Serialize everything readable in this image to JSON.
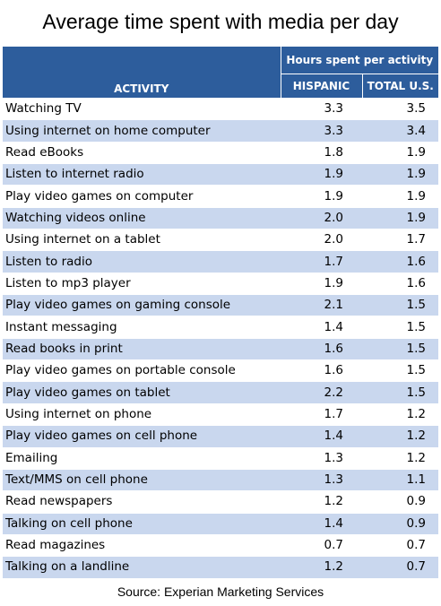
{
  "chart_data": {
    "type": "table",
    "title": "Average time spent with media per day",
    "header": {
      "activity": "ACTIVITY",
      "group": "Hours spent per activity",
      "hispanic": "HISPANIC",
      "total": "TOTAL U.S."
    },
    "rows": [
      {
        "activity": "Watching TV",
        "hispanic": "3.3",
        "total": "3.5"
      },
      {
        "activity": "Using internet on home computer",
        "hispanic": "3.3",
        "total": "3.4"
      },
      {
        "activity": "Read eBooks",
        "hispanic": "1.8",
        "total": "1.9"
      },
      {
        "activity": "Listen to internet radio",
        "hispanic": "1.9",
        "total": "1.9"
      },
      {
        "activity": "Play video games on computer",
        "hispanic": "1.9",
        "total": "1.9"
      },
      {
        "activity": "Watching videos online",
        "hispanic": "2.0",
        "total": "1.9"
      },
      {
        "activity": "Using internet on a tablet",
        "hispanic": "2.0",
        "total": "1.7"
      },
      {
        "activity": "Listen to radio",
        "hispanic": "1.7",
        "total": "1.6"
      },
      {
        "activity": "Listen to mp3 player",
        "hispanic": "1.9",
        "total": "1.6"
      },
      {
        "activity": "Play video games on gaming console",
        "hispanic": "2.1",
        "total": "1.5"
      },
      {
        "activity": "Instant messaging",
        "hispanic": "1.4",
        "total": "1.5"
      },
      {
        "activity": "Read books in print",
        "hispanic": "1.6",
        "total": "1.5"
      },
      {
        "activity": "Play video games on portable console",
        "hispanic": "1.6",
        "total": "1.5"
      },
      {
        "activity": "Play video games on tablet",
        "hispanic": "2.2",
        "total": "1.5"
      },
      {
        "activity": "Using internet on phone",
        "hispanic": "1.7",
        "total": "1.2"
      },
      {
        "activity": "Play video games on cell phone",
        "hispanic": "1.4",
        "total": "1.2"
      },
      {
        "activity": "Emailing",
        "hispanic": "1.3",
        "total": "1.2"
      },
      {
        "activity": "Text/MMS on cell phone",
        "hispanic": "1.3",
        "total": "1.1"
      },
      {
        "activity": "Read newspapers",
        "hispanic": "1.2",
        "total": "0.9"
      },
      {
        "activity": "Talking on cell phone",
        "hispanic": "1.4",
        "total": "0.9"
      },
      {
        "activity": "Read magazines",
        "hispanic": "0.7",
        "total": "0.7"
      },
      {
        "activity": "Talking on a landline",
        "hispanic": "1.2",
        "total": "0.7"
      }
    ],
    "source": "Source: Experian Marketing Services",
    "colors": {
      "header_bg": "#2d5d9c",
      "header_text": "#ffffff",
      "band": "#c9d7ee",
      "row": "#ffffff"
    }
  }
}
